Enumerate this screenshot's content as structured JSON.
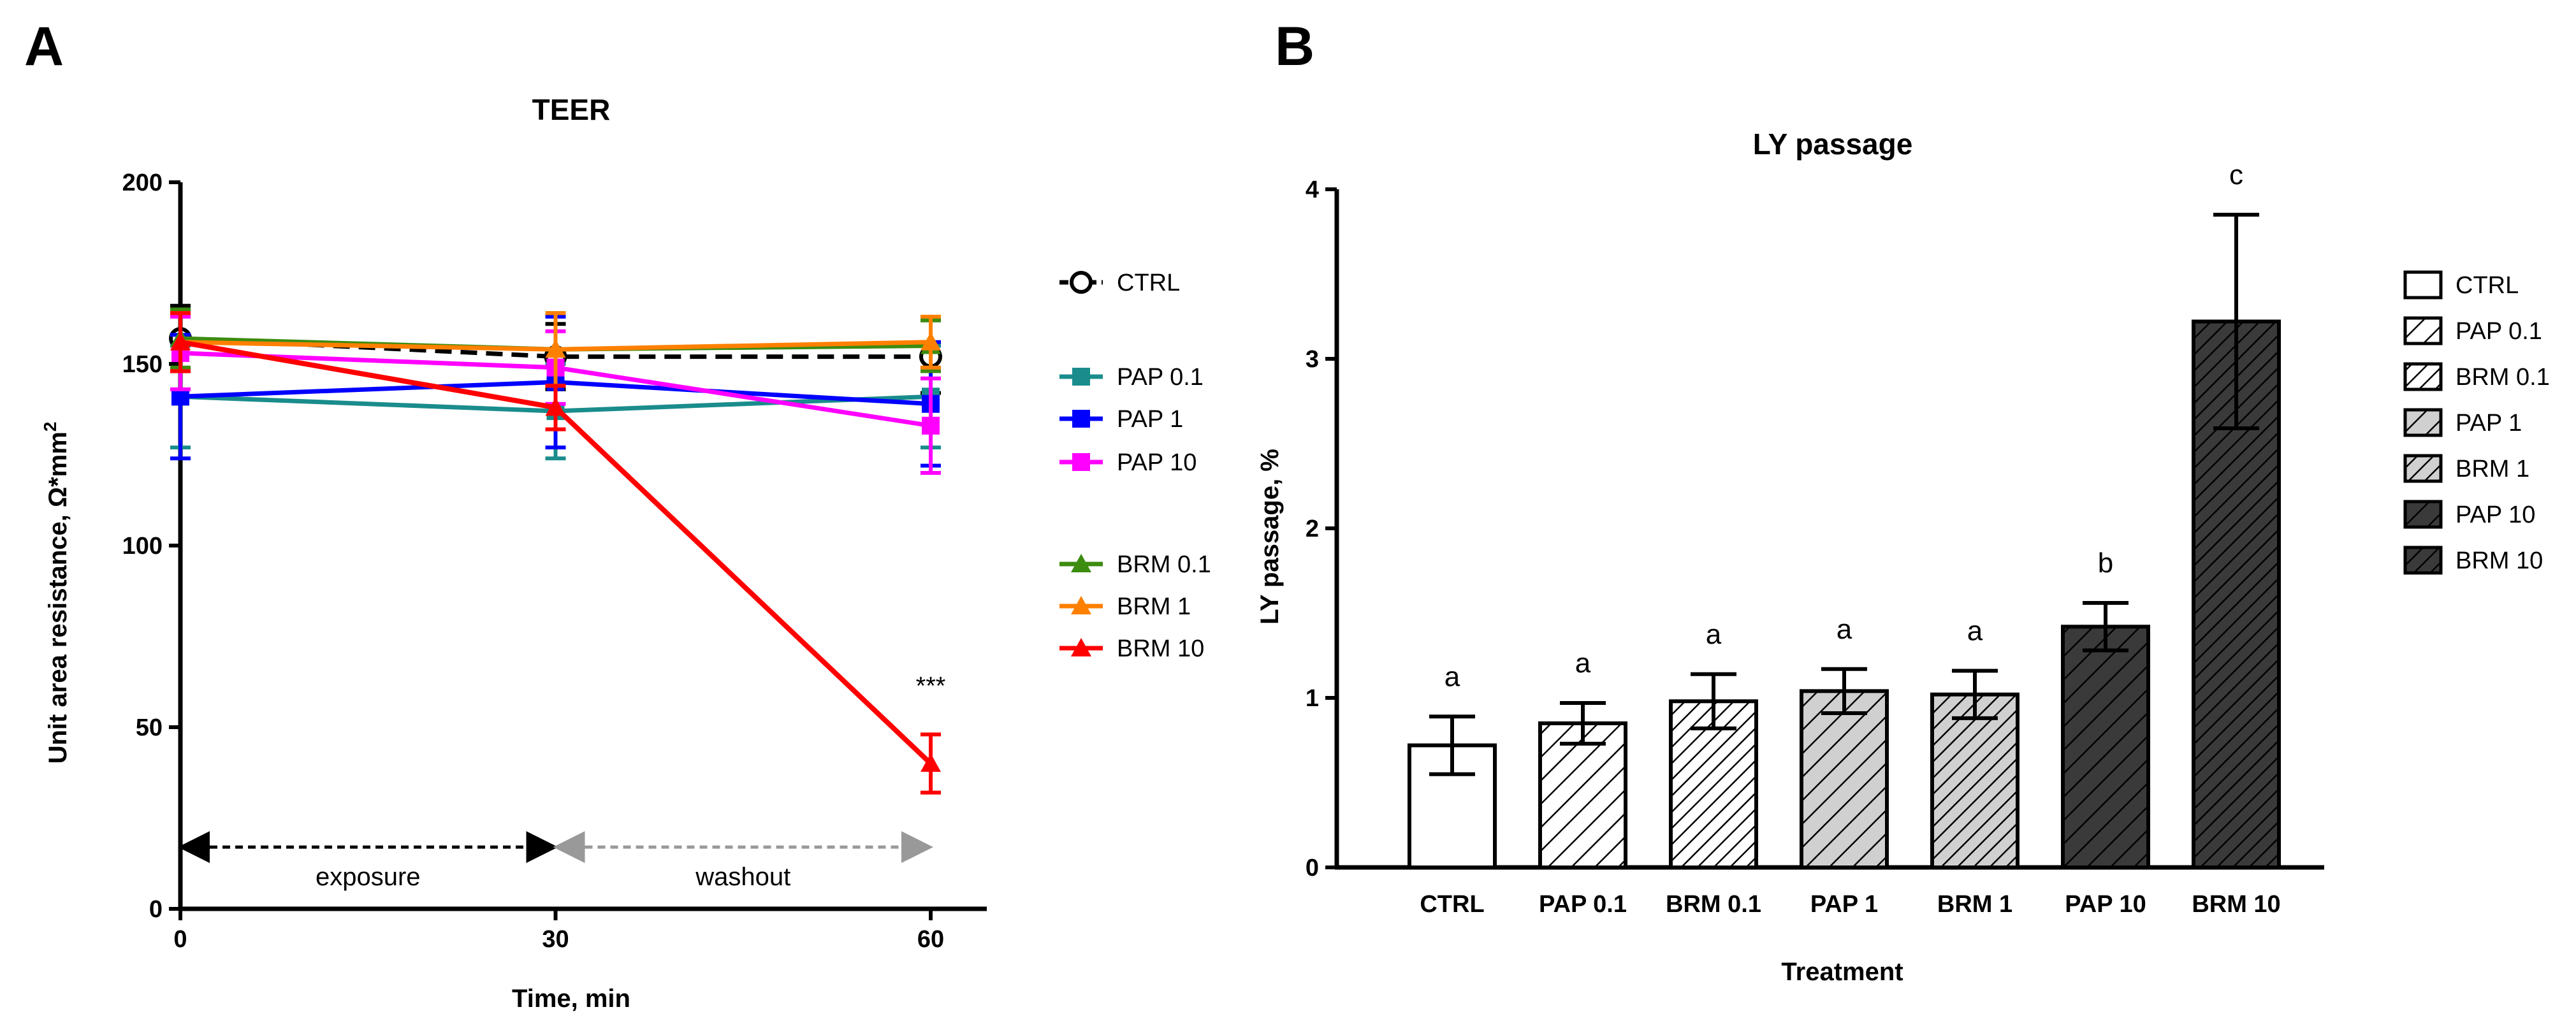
{
  "panels": {
    "a": "A",
    "b": "B"
  },
  "chart_data": [
    {
      "type": "line",
      "title": "TEER",
      "xlabel": "Time, min",
      "ylabel": "Unit area resistance, Ω*mm",
      "ylabel_sup": "2",
      "x": [
        0,
        30,
        60
      ],
      "xlim": [
        0,
        65
      ],
      "ylim": [
        0,
        200
      ],
      "xticks": [
        0,
        30,
        60
      ],
      "yticks": [
        0,
        50,
        100,
        150,
        200
      ],
      "grid": false,
      "legend_position": "right",
      "series": [
        {
          "name": "CTRL",
          "marker": "open-circle",
          "dash": true,
          "color": "#000000",
          "values": [
            157,
            152,
            152
          ],
          "errors": [
            9,
            9,
            10
          ]
        },
        {
          "name": "PAP 0.1",
          "marker": "square",
          "color": "#1a8c8c",
          "values": [
            141,
            137,
            141
          ],
          "errors": [
            14,
            13,
            14
          ]
        },
        {
          "name": "PAP 1",
          "marker": "square",
          "color": "#0000ff",
          "values": [
            141,
            145,
            139
          ],
          "errors": [
            17,
            18,
            17
          ]
        },
        {
          "name": "PAP 10",
          "marker": "square",
          "color": "#ff00ff",
          "values": [
            153,
            149,
            133
          ],
          "errors": [
            10,
            10,
            13
          ]
        },
        {
          "name": "BRM 0.1",
          "marker": "triangle",
          "color": "#3c8c10",
          "values": [
            157,
            154,
            155
          ],
          "errors": [
            8,
            10,
            7
          ]
        },
        {
          "name": "BRM 1",
          "marker": "triangle",
          "color": "#ff8000",
          "values": [
            156,
            154,
            156
          ],
          "errors": [
            8,
            10,
            7
          ]
        },
        {
          "name": "BRM 10",
          "marker": "triangle",
          "color": "#ff0000",
          "values": [
            156,
            138,
            40
          ],
          "errors": [
            8,
            6,
            8
          ]
        }
      ],
      "annotations": {
        "significance": {
          "text": "***",
          "x": 60,
          "y": 59
        },
        "exposure": {
          "text": "exposure",
          "x_from": 0,
          "x_to": 30,
          "y": 17,
          "color": "#000000"
        },
        "washout": {
          "text": "washout",
          "x_from": 30,
          "x_to": 60,
          "y": 17,
          "color": "#999999"
        }
      }
    },
    {
      "type": "bar",
      "title": "LY passage",
      "xlabel": "Treatment",
      "ylabel": "LY passage, %",
      "categories": [
        "CTRL",
        "PAP 0.1",
        "BRM 0.1",
        "PAP 1",
        "BRM 1",
        "PAP 10",
        "BRM 10"
      ],
      "values": [
        0.72,
        0.85,
        0.98,
        1.04,
        1.02,
        1.42,
        3.22
      ],
      "errors": [
        0.17,
        0.12,
        0.16,
        0.13,
        0.14,
        0.14,
        0.63
      ],
      "group_letters": [
        "a",
        "a",
        "a",
        "a",
        "a",
        "b",
        "c"
      ],
      "ylim": [
        0,
        4
      ],
      "yticks": [
        0,
        1,
        2,
        3,
        4
      ],
      "grid": false,
      "legend_position": "right",
      "fills": [
        "#ffffff",
        "#ffffff",
        "#ffffff",
        "#d0d0d0",
        "#d0d0d0",
        "#3a3a3a",
        "#3a3a3a"
      ],
      "hatch_colors": [
        "none",
        "#000000",
        "#000000",
        "#000000",
        "#000000",
        "#000000",
        "#000000"
      ],
      "hatch_spacing": [
        "none",
        "wide",
        "narrow",
        "wide",
        "narrow",
        "wide",
        "narrow"
      ]
    }
  ]
}
